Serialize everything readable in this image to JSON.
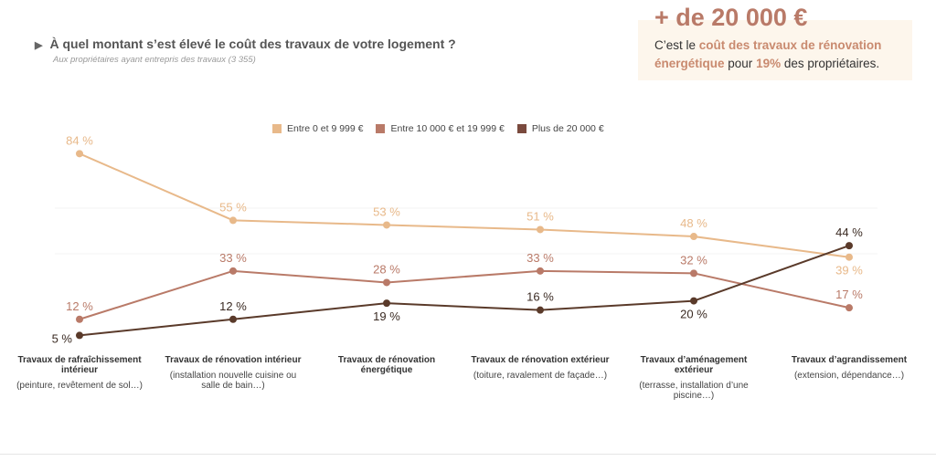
{
  "header": {
    "title": "À quel montant s’est élevé le coût des travaux de votre logement ?",
    "subtitle": "Aux propriétaires ayant entrepris des travaux (3 355)"
  },
  "callout": {
    "big": "+ de 20 000 €",
    "t1": "C’est le ",
    "h1": "coût des travaux de rénovation énergétique",
    "t2": " pour ",
    "h2": "19%",
    "t3": " des propriétaires."
  },
  "chart_data": {
    "type": "line",
    "categories": [
      {
        "title": "Travaux de rafraîchissement intérieur",
        "detail": "(peinture, revêtement de sol…)"
      },
      {
        "title": "Travaux de rénovation intérieur",
        "detail": "(installation nouvelle cuisine ou salle de bain…)"
      },
      {
        "title": "Travaux de rénovation énergétique",
        "detail": ""
      },
      {
        "title": "Travaux de rénovation extérieur",
        "detail": "(toiture, ravalement de façade…)"
      },
      {
        "title": "Travaux d’aménagement extérieur",
        "detail": "(terrasse, installation d’une piscine…)"
      },
      {
        "title": "Travaux d’agrandissement",
        "detail": "(extension, dépendance…)"
      }
    ],
    "series": [
      {
        "name": "Entre 0 et 9 999 €",
        "color": "#e8b98a",
        "values": [
          84,
          55,
          53,
          51,
          48,
          39
        ]
      },
      {
        "name": "Entre 10 000 € et 19 999 €",
        "color": "#b97a68",
        "values": [
          12,
          33,
          28,
          33,
          32,
          17
        ]
      },
      {
        "name": "Plus de 20 000 €",
        "color": "#5a3a2a",
        "values": [
          5,
          12,
          19,
          16,
          20,
          44
        ]
      }
    ],
    "unit": "%",
    "legend": "top-center",
    "grid": false
  }
}
